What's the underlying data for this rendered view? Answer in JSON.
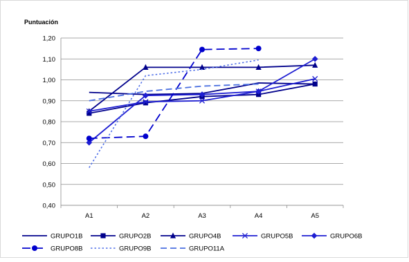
{
  "chart_data": {
    "type": "line",
    "ylabel": "Puntuación",
    "categories": [
      "A1",
      "A2",
      "A3",
      "A4",
      "A5"
    ],
    "ylim": [
      0.4,
      1.2
    ],
    "yticks": [
      "0,40",
      "0,50",
      "0,60",
      "0,70",
      "0,80",
      "0,90",
      "1,00",
      "1,10",
      "1,20"
    ],
    "grid": true,
    "legend_position": "bottom",
    "series": [
      {
        "name": "GRUPO1B",
        "color": "#00008b",
        "dash": "solid",
        "marker": "none",
        "values": [
          0.94,
          0.93,
          0.935,
          0.985,
          0.98
        ]
      },
      {
        "name": "GRUPO2B",
        "color": "#00008b",
        "dash": "solid",
        "marker": "square",
        "values": [
          0.84,
          0.89,
          0.92,
          0.93,
          0.98
        ]
      },
      {
        "name": "GRUPO4B",
        "color": "#00008b",
        "dash": "solid",
        "marker": "triangle",
        "values": [
          0.85,
          1.06,
          1.06,
          1.06,
          1.07
        ]
      },
      {
        "name": "GRUPO5B",
        "color": "#1e1ed2",
        "dash": "solid",
        "marker": "x",
        "values": [
          0.85,
          0.895,
          0.9,
          0.945,
          1.005
        ]
      },
      {
        "name": "GRUPO6B",
        "color": "#1e1ed2",
        "dash": "solid",
        "marker": "diamond",
        "values": [
          0.7,
          0.925,
          0.93,
          0.945,
          1.1
        ]
      },
      {
        "name": "GRUPO8B",
        "color": "#0000cd",
        "dash": "longdash",
        "marker": "circle",
        "values": [
          0.72,
          0.73,
          1.145,
          1.15,
          null
        ]
      },
      {
        "name": "GRUPO9B",
        "color": "#4f6fe8",
        "dash": "dot",
        "marker": "none",
        "values": [
          0.58,
          1.02,
          1.05,
          1.095,
          null
        ]
      },
      {
        "name": "GRUPO11A",
        "color": "#4a6fe0",
        "dash": "dash",
        "marker": "none",
        "values": [
          0.9,
          0.945,
          0.97,
          0.98,
          null
        ]
      }
    ]
  }
}
